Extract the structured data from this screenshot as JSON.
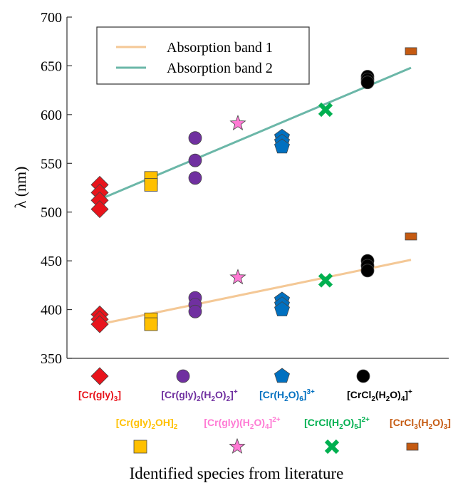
{
  "chart_data": {
    "type": "scatter",
    "xlabel": "Identified species from literature",
    "ylabel": "λ (nm)",
    "ylim": [
      350,
      700
    ],
    "yticks": [
      350,
      400,
      450,
      500,
      550,
      600,
      650,
      700
    ],
    "grid": false,
    "legend_placement": "top-left",
    "categories": [
      {
        "id": "crgly3",
        "label": "[Cr(gly)3]",
        "color": "#e8141c",
        "marker": "diamond"
      },
      {
        "id": "crgly2oh",
        "label": "[Cr(gly)2OH]2",
        "color": "#ffc000",
        "marker": "square"
      },
      {
        "id": "crgly2h2o2",
        "label": "[Cr(gly)2(H2O)2]+",
        "color": "#7030a0",
        "marker": "circle"
      },
      {
        "id": "crglyh2o4",
        "label": "[Cr(gly)(H2O)4]2+",
        "color": "#ff7ad4",
        "marker": "star"
      },
      {
        "id": "crh2o6",
        "label": "[Cr(H2O)6]3+",
        "color": "#0070c0",
        "marker": "pentagon"
      },
      {
        "id": "crclh2o5",
        "label": "[CrCl(H2O)5]2+",
        "color": "#00b050",
        "marker": "cross"
      },
      {
        "id": "crcl2h2o4",
        "label": "[CrCl2(H2O)4]+",
        "color": "#000000",
        "marker": "circle"
      },
      {
        "id": "crcl3h2o3",
        "label": "[CrCl3(H2O)3]",
        "color": "#c55a11",
        "marker": "rect"
      }
    ],
    "points": [
      {
        "category": "crgly3",
        "band": 2,
        "y": [
          528,
          520,
          512,
          503
        ]
      },
      {
        "category": "crgly3",
        "band": 1,
        "y": [
          395,
          390,
          385
        ]
      },
      {
        "category": "crgly2oh",
        "band": 2,
        "y": [
          535,
          528
        ]
      },
      {
        "category": "crgly2oh",
        "band": 1,
        "y": [
          390,
          385
        ]
      },
      {
        "category": "crgly2h2o2",
        "band": 2,
        "y": [
          576,
          553,
          535
        ]
      },
      {
        "category": "crgly2h2o2",
        "band": 1,
        "y": [
          412,
          405,
          398
        ]
      },
      {
        "category": "crglyh2o4",
        "band": 2,
        "y": [
          591
        ]
      },
      {
        "category": "crglyh2o4",
        "band": 1,
        "y": [
          433
        ]
      },
      {
        "category": "crh2o6",
        "band": 2,
        "y": [
          577,
          572,
          567
        ]
      },
      {
        "category": "crh2o6",
        "band": 1,
        "y": [
          410,
          405,
          400
        ]
      },
      {
        "category": "crclh2o5",
        "band": 2,
        "y": [
          605
        ]
      },
      {
        "category": "crclh2o5",
        "band": 1,
        "y": [
          430
        ]
      },
      {
        "category": "crcl2h2o4",
        "band": 2,
        "y": [
          639,
          636,
          633
        ]
      },
      {
        "category": "crcl2h2o4",
        "band": 1,
        "y": [
          450,
          445,
          440
        ]
      },
      {
        "category": "crcl3h2o3",
        "band": 2,
        "y": [
          665
        ]
      },
      {
        "category": "crcl3h2o3",
        "band": 1,
        "y": [
          475
        ]
      }
    ],
    "series": [
      {
        "name": "Absorption band 1",
        "color": "#f4c896",
        "fit_start": 385,
        "fit_end": 451
      },
      {
        "name": "Absorption band 2",
        "color": "#6bb7a8",
        "fit_start": 513,
        "fit_end": 648
      }
    ]
  }
}
